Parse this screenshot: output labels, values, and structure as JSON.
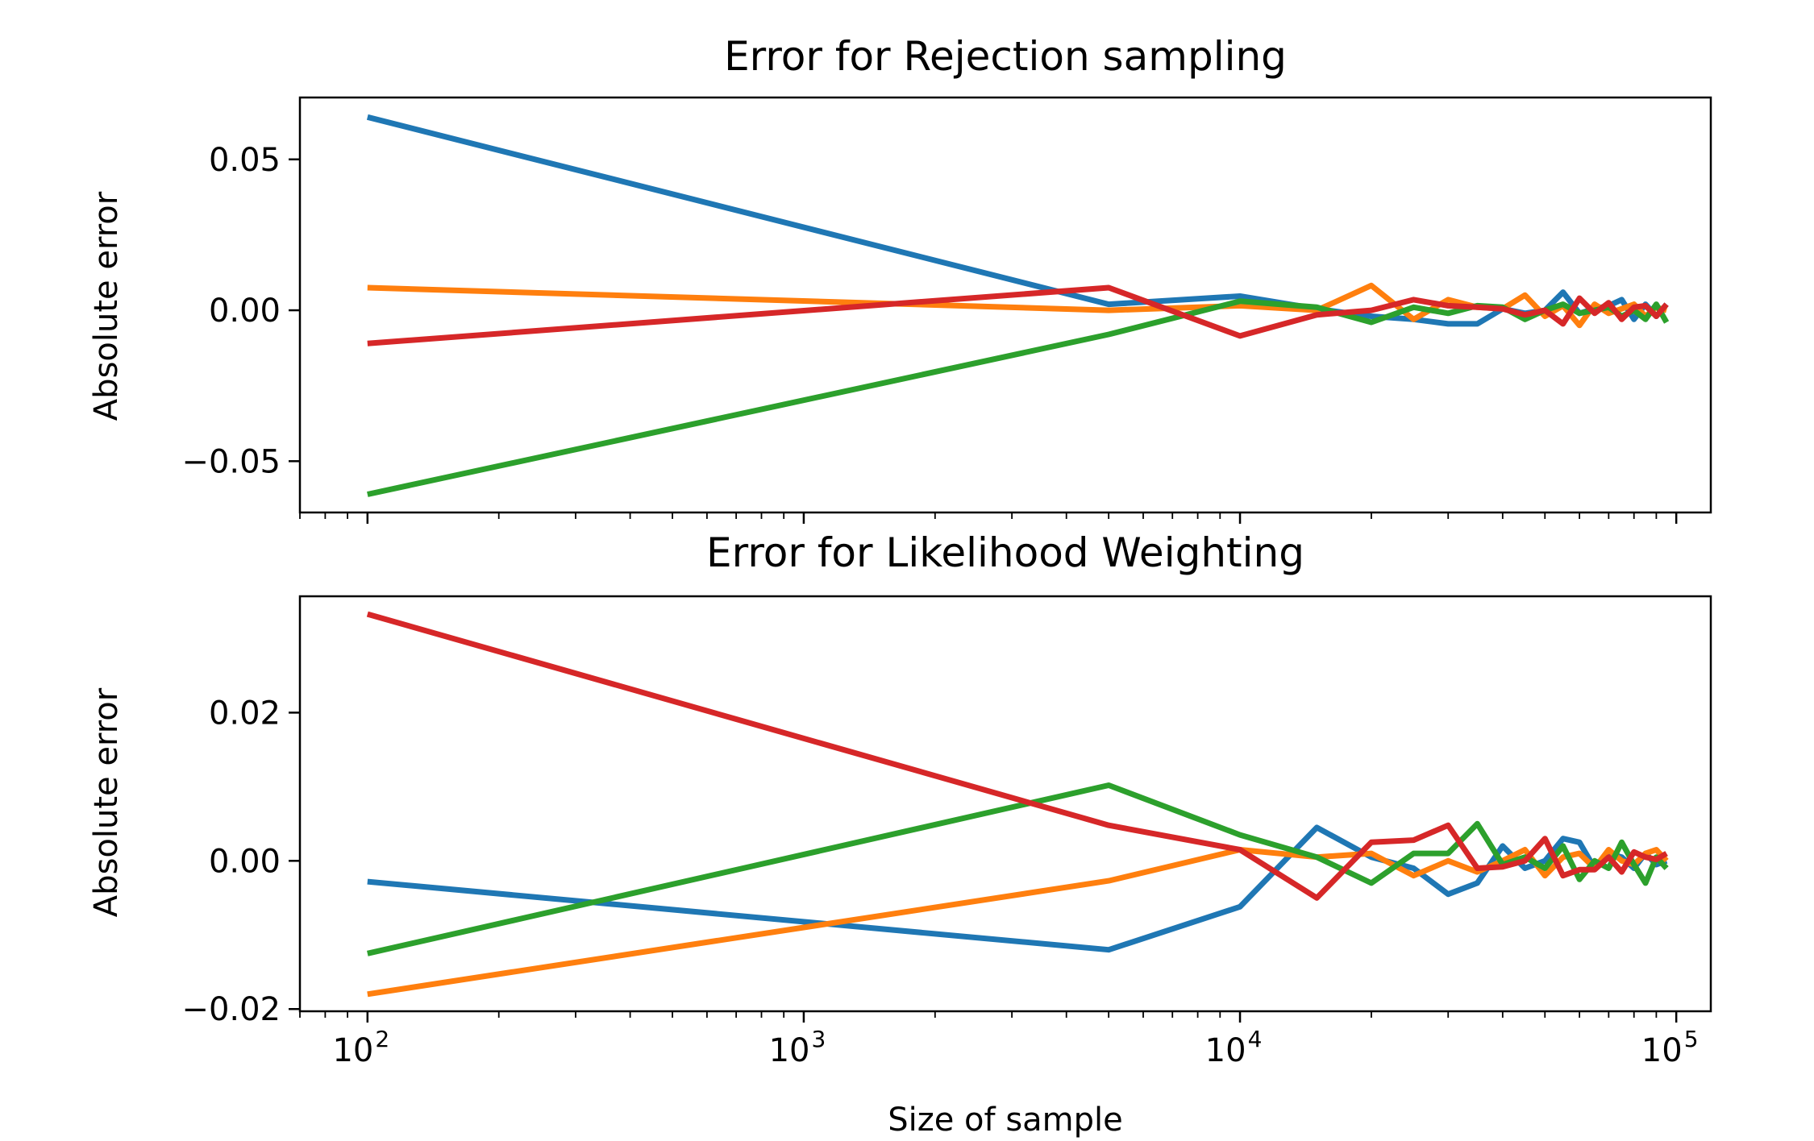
{
  "chart_data": [
    {
      "type": "line",
      "title": "Error for Rejection sampling",
      "ylabel": "Absolute error",
      "xlabel": "",
      "xscale": "log",
      "xlim": [
        70,
        120000
      ],
      "ylim": [
        -0.067,
        0.0705
      ],
      "yticks": [
        {
          "value": -0.05,
          "label": "−0.05"
        },
        {
          "value": 0.0,
          "label": "0.00"
        },
        {
          "value": 0.05,
          "label": "0.05"
        }
      ],
      "xtick_labels_visible": false,
      "grid": false,
      "series": [
        {
          "color": "#1f77b4",
          "x": [
            100,
            5000,
            10000,
            15000,
            20000,
            25000,
            30000,
            35000,
            40000,
            45000,
            50000,
            55000,
            60000,
            65000,
            70000,
            75000,
            80000,
            85000,
            90000,
            95000
          ],
          "y": [
            0.064,
            0.002,
            0.0047,
            0.0005,
            -0.002,
            -0.003,
            -0.0045,
            -0.0045,
            0.0005,
            -0.001,
            0.0,
            0.006,
            -0.001,
            0.0005,
            0.0015,
            0.0035,
            -0.003,
            0.002,
            -0.002,
            0.002
          ]
        },
        {
          "color": "#ff7f0e",
          "x": [
            100,
            5000,
            10000,
            15000,
            20000,
            25000,
            30000,
            35000,
            40000,
            45000,
            50000,
            55000,
            60000,
            65000,
            70000,
            75000,
            80000,
            85000,
            90000,
            95000
          ],
          "y": [
            0.0075,
            0.0,
            0.0015,
            0.0,
            0.0082,
            -0.003,
            0.0035,
            0.001,
            0.0005,
            0.005,
            -0.002,
            0.0015,
            -0.005,
            0.002,
            -0.001,
            0.0005,
            0.002,
            -0.002,
            0.001,
            0.0
          ]
        },
        {
          "color": "#2ca02c",
          "x": [
            100,
            5000,
            10000,
            15000,
            20000,
            25000,
            30000,
            35000,
            40000,
            45000,
            50000,
            55000,
            60000,
            65000,
            70000,
            75000,
            80000,
            85000,
            90000,
            95000
          ],
          "y": [
            -0.061,
            -0.008,
            0.003,
            0.001,
            -0.004,
            0.001,
            -0.001,
            0.0015,
            0.001,
            -0.003,
            0.0,
            0.002,
            -0.001,
            0.0,
            0.001,
            -0.002,
            0.0,
            -0.003,
            0.002,
            -0.004
          ]
        },
        {
          "color": "#d62728",
          "x": [
            100,
            5000,
            10000,
            15000,
            20000,
            25000,
            30000,
            35000,
            40000,
            45000,
            50000,
            55000,
            60000,
            65000,
            70000,
            75000,
            80000,
            85000,
            90000,
            95000
          ],
          "y": [
            -0.011,
            0.0075,
            -0.0085,
            -0.0015,
            0.0,
            0.0035,
            0.0015,
            0.001,
            0.0005,
            -0.0015,
            0.0,
            -0.0045,
            0.004,
            -0.001,
            0.0025,
            -0.003,
            0.001,
            0.0015,
            -0.002,
            0.002
          ]
        }
      ]
    },
    {
      "type": "line",
      "title": "Error for Likelihood Weighting",
      "ylabel": "Absolute error",
      "xlabel": "Size of sample",
      "xscale": "log",
      "xlim": [
        70,
        120000
      ],
      "ylim": [
        -0.0203,
        0.0357
      ],
      "yticks": [
        {
          "value": -0.02,
          "label": "−0.02"
        },
        {
          "value": 0.0,
          "label": "0.00"
        },
        {
          "value": 0.02,
          "label": "0.02"
        }
      ],
      "xticks": [
        {
          "value": 100,
          "base": "10",
          "exp": "2"
        },
        {
          "value": 1000,
          "base": "10",
          "exp": "3"
        },
        {
          "value": 10000,
          "base": "10",
          "exp": "4"
        },
        {
          "value": 100000,
          "base": "10",
          "exp": "5"
        }
      ],
      "grid": false,
      "series": [
        {
          "color": "#1f77b4",
          "x": [
            100,
            5000,
            10000,
            15000,
            20000,
            25000,
            30000,
            35000,
            40000,
            45000,
            50000,
            55000,
            60000,
            65000,
            70000,
            75000,
            80000,
            85000,
            90000,
            95000
          ],
          "y": [
            -0.0028,
            -0.012,
            -0.0062,
            0.0045,
            0.0005,
            -0.001,
            -0.0045,
            -0.003,
            0.002,
            -0.001,
            0.0,
            0.003,
            0.0025,
            -0.001,
            0.001,
            0.0005,
            -0.001,
            0.001,
            -0.0005,
            0.0
          ]
        },
        {
          "color": "#ff7f0e",
          "x": [
            100,
            5000,
            10000,
            15000,
            20000,
            25000,
            30000,
            35000,
            40000,
            45000,
            50000,
            55000,
            60000,
            65000,
            70000,
            75000,
            80000,
            85000,
            90000,
            95000
          ],
          "y": [
            -0.018,
            -0.0027,
            0.0015,
            0.0005,
            0.001,
            -0.002,
            0.0,
            -0.0015,
            0.0,
            0.0015,
            -0.002,
            0.0005,
            0.001,
            -0.001,
            0.0015,
            0.0,
            -0.0005,
            0.001,
            0.0015,
            0.0
          ]
        },
        {
          "color": "#2ca02c",
          "x": [
            100,
            5000,
            10000,
            15000,
            20000,
            25000,
            30000,
            35000,
            40000,
            45000,
            50000,
            55000,
            60000,
            65000,
            70000,
            75000,
            80000,
            85000,
            90000,
            95000
          ],
          "y": [
            -0.0125,
            0.0102,
            0.0035,
            0.0005,
            -0.003,
            0.001,
            0.001,
            0.005,
            -0.0005,
            0.0005,
            -0.001,
            0.002,
            -0.0025,
            0.0,
            -0.001,
            0.0025,
            -0.0005,
            -0.003,
            0.0005,
            -0.001
          ]
        },
        {
          "color": "#d62728",
          "x": [
            100,
            5000,
            10000,
            15000,
            20000,
            25000,
            30000,
            35000,
            40000,
            45000,
            50000,
            55000,
            60000,
            65000,
            70000,
            75000,
            80000,
            85000,
            90000,
            95000
          ],
          "y": [
            0.0333,
            0.0048,
            0.0015,
            -0.005,
            0.0025,
            0.0028,
            0.0048,
            -0.001,
            -0.0008,
            0.0,
            0.003,
            -0.002,
            -0.0012,
            -0.0012,
            0.0005,
            -0.0015,
            0.0012,
            0.0005,
            0.0002,
            0.001
          ]
        }
      ]
    }
  ]
}
